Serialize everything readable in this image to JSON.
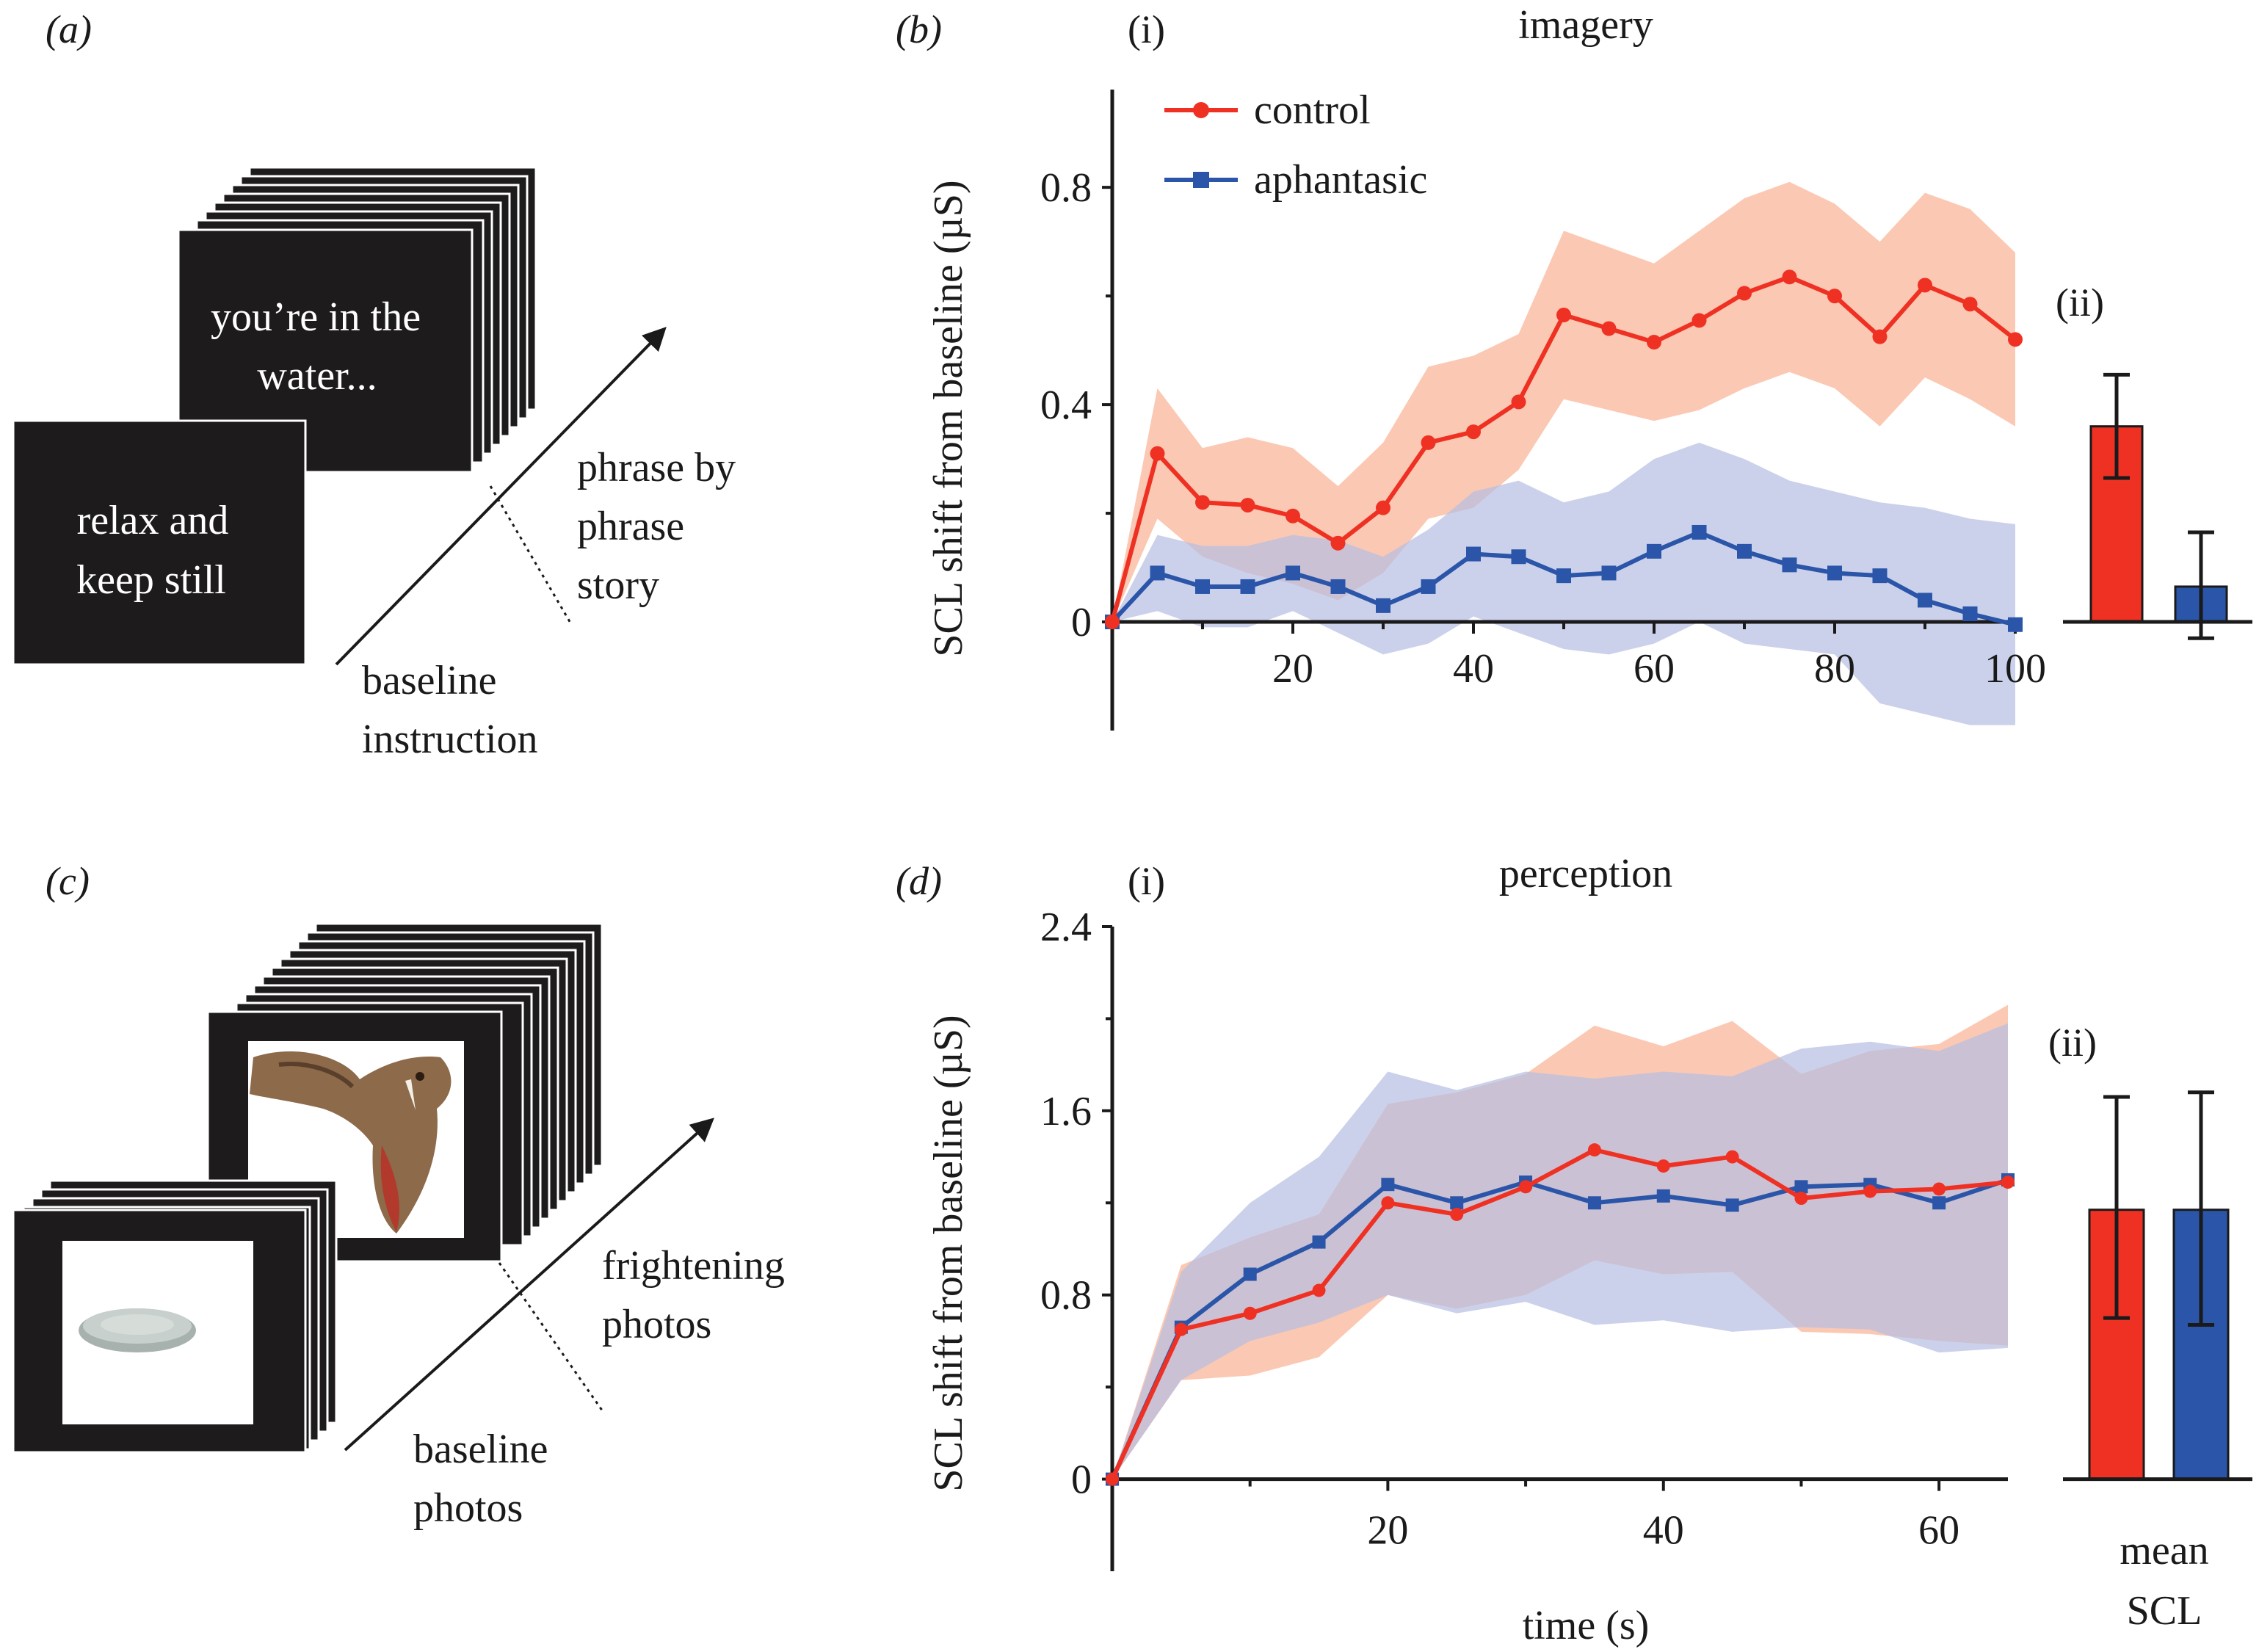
{
  "panel_labels": {
    "a": "(a)",
    "b": "(b)",
    "c": "(c)",
    "d": "(d)"
  },
  "panel_a": {
    "card_front": [
      "relax and",
      "keep still"
    ],
    "card_back": [
      "you’re in the",
      "water..."
    ],
    "arrow_label": [
      "phrase by",
      "phrase",
      "story"
    ],
    "baseline_label": [
      "baseline",
      "instruction"
    ]
  },
  "panel_c": {
    "front_image": "plate-photo",
    "back_image": "snake-photo",
    "arrow_label": [
      "frightening",
      "photos"
    ],
    "baseline_label": [
      "baseline",
      "photos"
    ]
  },
  "colors": {
    "control": "#ef3124",
    "aphantasic": "#2a55a8",
    "control_band": "#f9b293",
    "aphantasic_band": "#b7bde3",
    "card": "#1d1b1b"
  },
  "chart_data": [
    {
      "id": "b-i",
      "type": "line",
      "sub_label": "(i)",
      "title": "imagery",
      "xlabel": "",
      "ylabel": "SCL shift from baseline (µS)",
      "xlim": [
        0,
        100
      ],
      "ylim": [
        -0.2,
        0.98
      ],
      "xticks": [
        20,
        40,
        60,
        80,
        100
      ],
      "yticks": [
        0,
        0.4,
        0.8
      ],
      "ytick_labels": [
        "0",
        "0.4",
        "0.8"
      ],
      "legend": {
        "position": "top-left",
        "entries": [
          "control",
          "aphantasic"
        ]
      },
      "x": [
        0,
        5,
        10,
        15,
        20,
        25,
        30,
        35,
        40,
        45,
        50,
        55,
        60,
        65,
        70,
        75,
        80,
        85,
        90,
        95,
        100
      ],
      "series": [
        {
          "name": "control",
          "marker": "circle",
          "values": [
            0,
            0.31,
            0.22,
            0.215,
            0.195,
            0.145,
            0.21,
            0.33,
            0.35,
            0.405,
            0.565,
            0.54,
            0.515,
            0.555,
            0.605,
            0.635,
            0.6,
            0.525,
            0.62,
            0.585,
            0.52
          ],
          "upper": [
            0,
            0.43,
            0.32,
            0.34,
            0.32,
            0.25,
            0.33,
            0.47,
            0.49,
            0.53,
            0.72,
            0.69,
            0.66,
            0.72,
            0.78,
            0.81,
            0.77,
            0.7,
            0.79,
            0.76,
            0.68
          ],
          "lower": [
            0,
            0.19,
            0.12,
            0.09,
            0.07,
            0.04,
            0.09,
            0.19,
            0.21,
            0.28,
            0.41,
            0.39,
            0.37,
            0.39,
            0.43,
            0.46,
            0.43,
            0.36,
            0.45,
            0.41,
            0.36
          ]
        },
        {
          "name": "aphantasic",
          "marker": "square",
          "values": [
            0,
            0.09,
            0.065,
            0.065,
            0.09,
            0.065,
            0.03,
            0.065,
            0.125,
            0.12,
            0.085,
            0.09,
            0.13,
            0.165,
            0.13,
            0.105,
            0.09,
            0.085,
            0.04,
            0.015,
            -0.005
          ],
          "upper": [
            0,
            0.16,
            0.14,
            0.14,
            0.16,
            0.15,
            0.12,
            0.17,
            0.24,
            0.26,
            0.22,
            0.24,
            0.3,
            0.33,
            0.3,
            0.26,
            0.24,
            0.22,
            0.21,
            0.19,
            0.18
          ],
          "lower": [
            0,
            0.02,
            -0.01,
            -0.01,
            0.02,
            -0.02,
            -0.06,
            -0.04,
            0.01,
            -0.02,
            -0.05,
            -0.06,
            -0.04,
            0,
            -0.04,
            -0.05,
            -0.06,
            -0.15,
            -0.17,
            -0.19,
            -0.19
          ]
        }
      ]
    },
    {
      "id": "b-ii",
      "type": "bar",
      "sub_label": "(ii)",
      "categories": [
        "control",
        "aphantasic"
      ],
      "values": [
        0.36,
        0.065
      ],
      "error_upper": [
        0.455,
        0.165
      ],
      "error_lower": [
        0.265,
        -0.03
      ],
      "ylim": [
        -0.2,
        0.98
      ]
    },
    {
      "id": "d-i",
      "type": "line",
      "sub_label": "(i)",
      "title": "perception",
      "xlabel": "time (s)",
      "ylabel": "SCL shift from baseline (µS)",
      "xlim": [
        0,
        65
      ],
      "ylim": [
        -0.4,
        2.4
      ],
      "xticks": [
        20,
        40,
        60
      ],
      "yticks": [
        0,
        0.8,
        1.6,
        2.4
      ],
      "ytick_labels": [
        "0",
        "0.8",
        "1.6",
        "2.4"
      ],
      "x": [
        0,
        5,
        10,
        15,
        20,
        25,
        30,
        35,
        40,
        45,
        50,
        55,
        60,
        65
      ],
      "series": [
        {
          "name": "control",
          "marker": "circle",
          "values": [
            0,
            0.65,
            0.72,
            0.82,
            1.2,
            1.15,
            1.27,
            1.43,
            1.36,
            1.4,
            1.22,
            1.25,
            1.26,
            1.29
          ],
          "upper": [
            0,
            0.93,
            1.05,
            1.15,
            1.63,
            1.68,
            1.76,
            1.97,
            1.88,
            1.99,
            1.76,
            1.86,
            1.89,
            2.06
          ],
          "lower": [
            0,
            0.43,
            0.45,
            0.53,
            0.8,
            0.74,
            0.8,
            0.95,
            0.89,
            0.9,
            0.64,
            0.63,
            0.6,
            0.58
          ]
        },
        {
          "name": "aphantasic",
          "marker": "square",
          "values": [
            0,
            0.66,
            0.89,
            1.03,
            1.28,
            1.2,
            1.29,
            1.2,
            1.23,
            1.19,
            1.27,
            1.28,
            1.2,
            1.3
          ],
          "upper": [
            0,
            0.9,
            1.2,
            1.4,
            1.77,
            1.69,
            1.77,
            1.74,
            1.77,
            1.75,
            1.87,
            1.9,
            1.86,
            1.98
          ],
          "lower": [
            0,
            0.43,
            0.6,
            0.68,
            0.8,
            0.72,
            0.77,
            0.67,
            0.69,
            0.64,
            0.66,
            0.65,
            0.55,
            0.57
          ]
        }
      ]
    },
    {
      "id": "d-ii",
      "type": "bar",
      "sub_label": "(ii)",
      "categories": [
        "control",
        "aphantasic"
      ],
      "values": [
        1.17,
        1.17
      ],
      "error_upper": [
        1.66,
        1.68
      ],
      "error_lower": [
        0.7,
        0.67
      ],
      "ylim": [
        -0.4,
        2.4
      ],
      "xlabel": [
        "mean",
        "SCL"
      ]
    }
  ]
}
